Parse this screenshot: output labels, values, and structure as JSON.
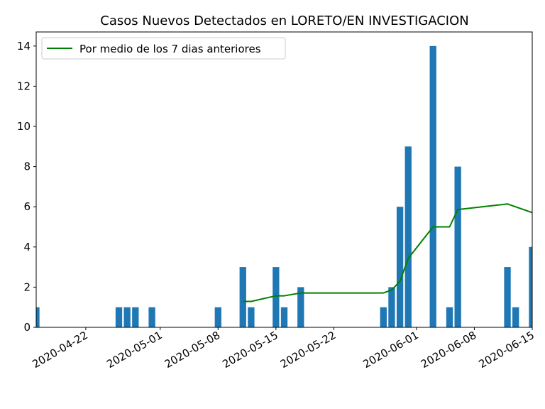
{
  "chart_data": {
    "type": "bar",
    "title": "Casos Nuevos Detectados en LORETO/EN INVESTIGACION",
    "xlabel": "",
    "ylabel": "",
    "x_range": [
      "2020-04-16",
      "2020-06-15"
    ],
    "ylim": [
      0,
      14.7
    ],
    "yticks": [
      0,
      2,
      4,
      6,
      8,
      10,
      12,
      14
    ],
    "xticks": [
      "2020-04-22",
      "2020-05-01",
      "2020-05-08",
      "2020-05-15",
      "2020-05-22",
      "2020-06-01",
      "2020-06-08",
      "2020-06-15"
    ],
    "grid": false,
    "legend_position": "top-left",
    "bar_color": "#1f77b4",
    "line_color": "#008000",
    "bars": [
      {
        "x": "2020-04-16",
        "y": 1
      },
      {
        "x": "2020-04-26",
        "y": 1
      },
      {
        "x": "2020-04-27",
        "y": 1
      },
      {
        "x": "2020-04-28",
        "y": 1
      },
      {
        "x": "2020-04-30",
        "y": 1
      },
      {
        "x": "2020-05-08",
        "y": 1
      },
      {
        "x": "2020-05-11",
        "y": 3
      },
      {
        "x": "2020-05-12",
        "y": 1
      },
      {
        "x": "2020-05-15",
        "y": 3
      },
      {
        "x": "2020-05-16",
        "y": 1
      },
      {
        "x": "2020-05-18",
        "y": 2
      },
      {
        "x": "2020-05-28",
        "y": 1
      },
      {
        "x": "2020-05-29",
        "y": 2
      },
      {
        "x": "2020-05-30",
        "y": 6
      },
      {
        "x": "2020-05-31",
        "y": 9
      },
      {
        "x": "2020-06-03",
        "y": 14
      },
      {
        "x": "2020-06-05",
        "y": 1
      },
      {
        "x": "2020-06-06",
        "y": 8
      },
      {
        "x": "2020-06-12",
        "y": 3
      },
      {
        "x": "2020-06-13",
        "y": 1
      },
      {
        "x": "2020-06-15",
        "y": 4
      }
    ],
    "series": [
      {
        "name": "Por medio de los 7 dias anteriores",
        "points": [
          {
            "x": "2020-05-11",
            "y": 1.29
          },
          {
            "x": "2020-05-12",
            "y": 1.29
          },
          {
            "x": "2020-05-15",
            "y": 1.57
          },
          {
            "x": "2020-05-16",
            "y": 1.57
          },
          {
            "x": "2020-05-18",
            "y": 1.71
          },
          {
            "x": "2020-05-28",
            "y": 1.71
          },
          {
            "x": "2020-05-29",
            "y": 1.86
          },
          {
            "x": "2020-05-30",
            "y": 2.29
          },
          {
            "x": "2020-05-31",
            "y": 3.43
          },
          {
            "x": "2020-06-03",
            "y": 5.0
          },
          {
            "x": "2020-06-05",
            "y": 5.0
          },
          {
            "x": "2020-06-06",
            "y": 5.86
          },
          {
            "x": "2020-06-12",
            "y": 6.14
          },
          {
            "x": "2020-06-15",
            "y": 5.71
          }
        ]
      }
    ]
  }
}
